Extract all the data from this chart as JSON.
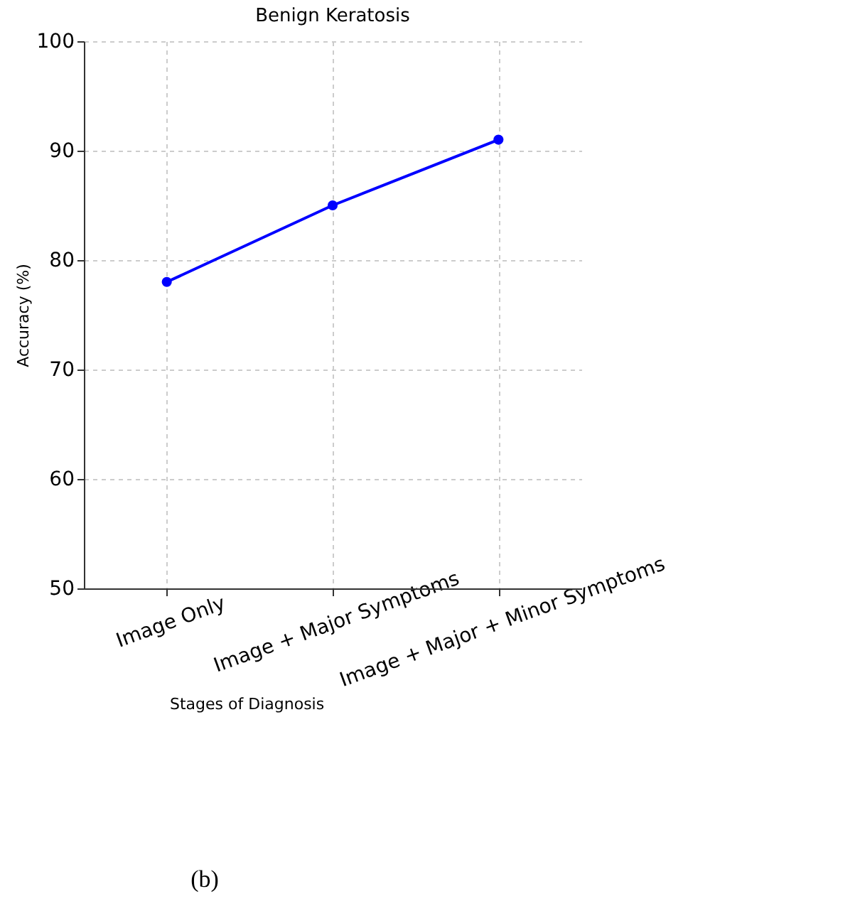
{
  "chart_data": {
    "type": "line",
    "title": "Benign Keratosis",
    "xlabel": "Stages of Diagnosis",
    "ylabel": "Accuracy (%)",
    "categories": [
      "Image Only",
      "Image + Major Symptoms",
      "Image + Major + Minor Symptoms"
    ],
    "series": [
      {
        "color": "#0000ff",
        "values": [
          78,
          85,
          91
        ]
      }
    ],
    "ylim": [
      50,
      100
    ],
    "yticks": [
      50,
      60,
      70,
      80,
      90,
      100
    ],
    "grid": true,
    "legend": false,
    "marker": "circle",
    "line_style": "solid",
    "annotations": [
      "(b)"
    ]
  }
}
